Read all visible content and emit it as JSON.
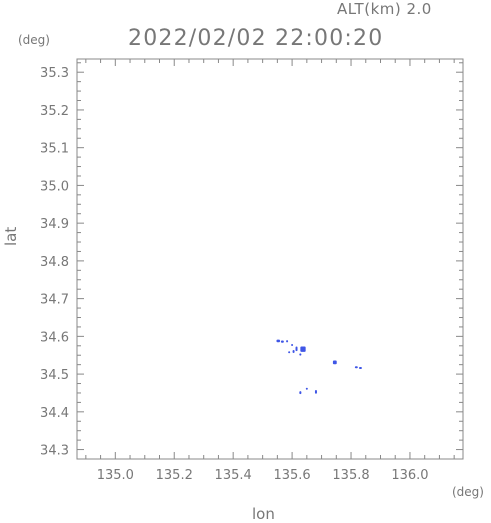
{
  "header": {
    "altitude_label": "ALT(km) 2.0",
    "timestamp": "2022/02/02 22:00:20",
    "deg_unit_y": "(deg)",
    "deg_unit_x": "(deg)"
  },
  "chart_data": {
    "type": "scatter",
    "title": "2022/02/02 22:00:20",
    "xlabel": "lon",
    "ylabel": "lat",
    "xlim": [
      134.87,
      136.18
    ],
    "ylim": [
      34.275,
      35.335
    ],
    "x_ticks": [
      135.0,
      135.2,
      135.4,
      135.6,
      135.8,
      136.0
    ],
    "x_tick_labels": [
      "135.0",
      "135.2",
      "135.4",
      "135.6",
      "135.8",
      "136.0"
    ],
    "y_ticks": [
      34.3,
      34.4,
      34.5,
      34.6,
      34.7,
      34.8,
      34.9,
      35.0,
      35.1,
      35.2,
      35.3
    ],
    "y_tick_labels": [
      "34.3",
      "34.4",
      "34.5",
      "34.6",
      "34.7",
      "34.8",
      "34.9",
      "35.0",
      "35.1",
      "35.2",
      "35.3"
    ],
    "grid": false,
    "series_color": "#3f56e6",
    "points": [
      {
        "lon": 135.553,
        "lat": 34.588,
        "w": 0.012,
        "h": 0.007
      },
      {
        "lon": 135.567,
        "lat": 34.586,
        "w": 0.01,
        "h": 0.006
      },
      {
        "lon": 135.583,
        "lat": 34.587,
        "w": 0.006,
        "h": 0.006
      },
      {
        "lon": 135.6,
        "lat": 34.577,
        "w": 0.004,
        "h": 0.004
      },
      {
        "lon": 135.605,
        "lat": 34.56,
        "w": 0.004,
        "h": 0.008
      },
      {
        "lon": 135.59,
        "lat": 34.558,
        "w": 0.003,
        "h": 0.003
      },
      {
        "lon": 135.615,
        "lat": 34.567,
        "w": 0.006,
        "h": 0.012
      },
      {
        "lon": 135.637,
        "lat": 34.566,
        "w": 0.018,
        "h": 0.014
      },
      {
        "lon": 135.628,
        "lat": 34.552,
        "w": 0.004,
        "h": 0.006
      },
      {
        "lon": 135.745,
        "lat": 34.531,
        "w": 0.013,
        "h": 0.01
      },
      {
        "lon": 135.818,
        "lat": 34.518,
        "w": 0.01,
        "h": 0.005
      },
      {
        "lon": 135.832,
        "lat": 34.516,
        "w": 0.01,
        "h": 0.005
      },
      {
        "lon": 135.628,
        "lat": 34.451,
        "w": 0.004,
        "h": 0.008
      },
      {
        "lon": 135.65,
        "lat": 34.461,
        "w": 0.005,
        "h": 0.005
      },
      {
        "lon": 135.681,
        "lat": 34.453,
        "w": 0.004,
        "h": 0.01
      }
    ]
  }
}
